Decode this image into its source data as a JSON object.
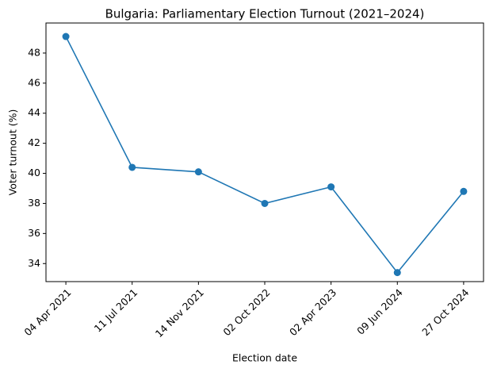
{
  "chart_data": {
    "type": "line",
    "title": "Bulgaria: Parliamentary Election Turnout (2021–2024)",
    "x_label": "Election date",
    "y_label": "Voter turnout (%)",
    "categories": [
      "04 Apr 2021",
      "11 Jul 2021",
      "14 Nov 2021",
      "02 Oct 2022",
      "02 Apr 2023",
      "09 Jun 2024",
      "27 Oct 2024"
    ],
    "values": [
      49.1,
      40.4,
      40.1,
      38.0,
      39.1,
      33.4,
      38.8
    ],
    "color": "#1f77b4",
    "marker": true,
    "ylim": [
      32.8,
      50.0
    ],
    "yticks": [
      34,
      36,
      38,
      40,
      42,
      44,
      46,
      48
    ],
    "grid": false
  }
}
